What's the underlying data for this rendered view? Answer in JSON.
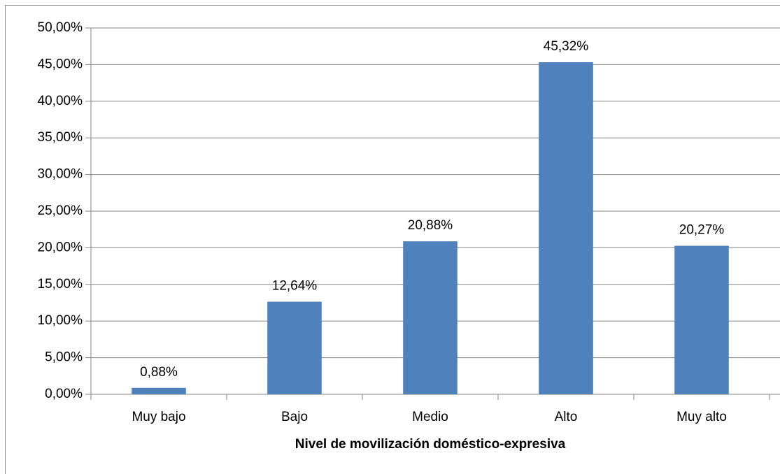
{
  "chart_data": {
    "type": "bar",
    "x_label": "Nivel de movilización doméstico-expresiva",
    "categories": [
      "Muy bajo",
      "Bajo",
      "Medio",
      "Alto",
      "Muy alto"
    ],
    "values": [
      0.88,
      12.64,
      20.88,
      45.32,
      20.27
    ],
    "value_labels": [
      "0,88%",
      "12,64%",
      "20,88%",
      "45,32%",
      "20,27%"
    ],
    "color": "#4f81bd",
    "ylim": [
      0,
      50
    ],
    "yticks": [
      {
        "value": 0,
        "label": "0,00%"
      },
      {
        "value": 5,
        "label": "5,00%"
      },
      {
        "value": 10,
        "label": "10,00%"
      },
      {
        "value": 15,
        "label": "15,00%"
      },
      {
        "value": 20,
        "label": "20,00%"
      },
      {
        "value": 25,
        "label": "25,00%"
      },
      {
        "value": 30,
        "label": "30,00%"
      },
      {
        "value": 35,
        "label": "35,00%"
      },
      {
        "value": 40,
        "label": "40,00%"
      },
      {
        "value": 45,
        "label": "45,00%"
      },
      {
        "value": 50,
        "label": "50,00%"
      }
    ],
    "grid": true
  }
}
